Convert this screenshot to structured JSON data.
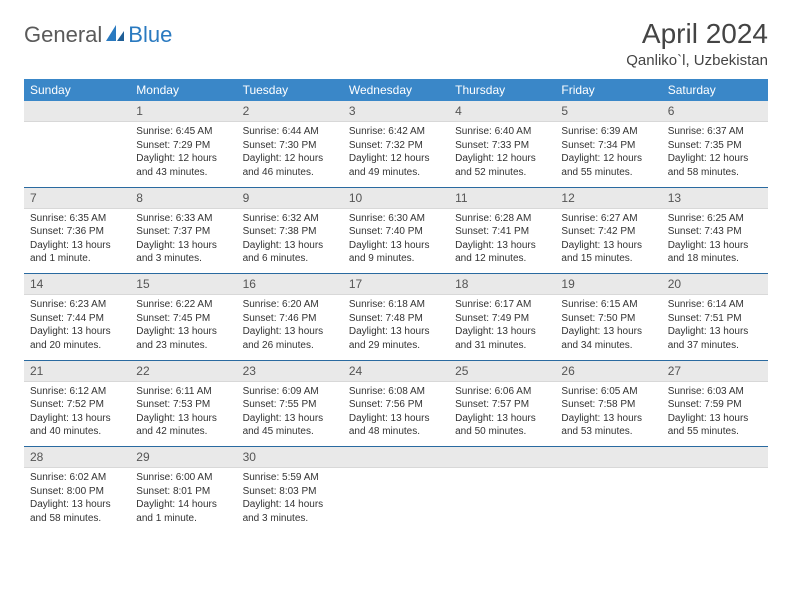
{
  "brand": {
    "part1": "General",
    "part2": "Blue"
  },
  "title": "April 2024",
  "location": "Qanliko`l, Uzbekistan",
  "colors": {
    "header_bg": "#3a87c8",
    "daynum_bg": "#e9e9e9",
    "week_sep": "#2a6aa0",
    "brand_blue": "#2a7ac0",
    "brand_gray": "#5a5a5a"
  },
  "weekdays": [
    "Sunday",
    "Monday",
    "Tuesday",
    "Wednesday",
    "Thursday",
    "Friday",
    "Saturday"
  ],
  "weeks": [
    [
      {
        "n": "",
        "sr": "",
        "ss": "",
        "dl": ""
      },
      {
        "n": "1",
        "sr": "Sunrise: 6:45 AM",
        "ss": "Sunset: 7:29 PM",
        "dl": "Daylight: 12 hours and 43 minutes."
      },
      {
        "n": "2",
        "sr": "Sunrise: 6:44 AM",
        "ss": "Sunset: 7:30 PM",
        "dl": "Daylight: 12 hours and 46 minutes."
      },
      {
        "n": "3",
        "sr": "Sunrise: 6:42 AM",
        "ss": "Sunset: 7:32 PM",
        "dl": "Daylight: 12 hours and 49 minutes."
      },
      {
        "n": "4",
        "sr": "Sunrise: 6:40 AM",
        "ss": "Sunset: 7:33 PM",
        "dl": "Daylight: 12 hours and 52 minutes."
      },
      {
        "n": "5",
        "sr": "Sunrise: 6:39 AM",
        "ss": "Sunset: 7:34 PM",
        "dl": "Daylight: 12 hours and 55 minutes."
      },
      {
        "n": "6",
        "sr": "Sunrise: 6:37 AM",
        "ss": "Sunset: 7:35 PM",
        "dl": "Daylight: 12 hours and 58 minutes."
      }
    ],
    [
      {
        "n": "7",
        "sr": "Sunrise: 6:35 AM",
        "ss": "Sunset: 7:36 PM",
        "dl": "Daylight: 13 hours and 1 minute."
      },
      {
        "n": "8",
        "sr": "Sunrise: 6:33 AM",
        "ss": "Sunset: 7:37 PM",
        "dl": "Daylight: 13 hours and 3 minutes."
      },
      {
        "n": "9",
        "sr": "Sunrise: 6:32 AM",
        "ss": "Sunset: 7:38 PM",
        "dl": "Daylight: 13 hours and 6 minutes."
      },
      {
        "n": "10",
        "sr": "Sunrise: 6:30 AM",
        "ss": "Sunset: 7:40 PM",
        "dl": "Daylight: 13 hours and 9 minutes."
      },
      {
        "n": "11",
        "sr": "Sunrise: 6:28 AM",
        "ss": "Sunset: 7:41 PM",
        "dl": "Daylight: 13 hours and 12 minutes."
      },
      {
        "n": "12",
        "sr": "Sunrise: 6:27 AM",
        "ss": "Sunset: 7:42 PM",
        "dl": "Daylight: 13 hours and 15 minutes."
      },
      {
        "n": "13",
        "sr": "Sunrise: 6:25 AM",
        "ss": "Sunset: 7:43 PM",
        "dl": "Daylight: 13 hours and 18 minutes."
      }
    ],
    [
      {
        "n": "14",
        "sr": "Sunrise: 6:23 AM",
        "ss": "Sunset: 7:44 PM",
        "dl": "Daylight: 13 hours and 20 minutes."
      },
      {
        "n": "15",
        "sr": "Sunrise: 6:22 AM",
        "ss": "Sunset: 7:45 PM",
        "dl": "Daylight: 13 hours and 23 minutes."
      },
      {
        "n": "16",
        "sr": "Sunrise: 6:20 AM",
        "ss": "Sunset: 7:46 PM",
        "dl": "Daylight: 13 hours and 26 minutes."
      },
      {
        "n": "17",
        "sr": "Sunrise: 6:18 AM",
        "ss": "Sunset: 7:48 PM",
        "dl": "Daylight: 13 hours and 29 minutes."
      },
      {
        "n": "18",
        "sr": "Sunrise: 6:17 AM",
        "ss": "Sunset: 7:49 PM",
        "dl": "Daylight: 13 hours and 31 minutes."
      },
      {
        "n": "19",
        "sr": "Sunrise: 6:15 AM",
        "ss": "Sunset: 7:50 PM",
        "dl": "Daylight: 13 hours and 34 minutes."
      },
      {
        "n": "20",
        "sr": "Sunrise: 6:14 AM",
        "ss": "Sunset: 7:51 PM",
        "dl": "Daylight: 13 hours and 37 minutes."
      }
    ],
    [
      {
        "n": "21",
        "sr": "Sunrise: 6:12 AM",
        "ss": "Sunset: 7:52 PM",
        "dl": "Daylight: 13 hours and 40 minutes."
      },
      {
        "n": "22",
        "sr": "Sunrise: 6:11 AM",
        "ss": "Sunset: 7:53 PM",
        "dl": "Daylight: 13 hours and 42 minutes."
      },
      {
        "n": "23",
        "sr": "Sunrise: 6:09 AM",
        "ss": "Sunset: 7:55 PM",
        "dl": "Daylight: 13 hours and 45 minutes."
      },
      {
        "n": "24",
        "sr": "Sunrise: 6:08 AM",
        "ss": "Sunset: 7:56 PM",
        "dl": "Daylight: 13 hours and 48 minutes."
      },
      {
        "n": "25",
        "sr": "Sunrise: 6:06 AM",
        "ss": "Sunset: 7:57 PM",
        "dl": "Daylight: 13 hours and 50 minutes."
      },
      {
        "n": "26",
        "sr": "Sunrise: 6:05 AM",
        "ss": "Sunset: 7:58 PM",
        "dl": "Daylight: 13 hours and 53 minutes."
      },
      {
        "n": "27",
        "sr": "Sunrise: 6:03 AM",
        "ss": "Sunset: 7:59 PM",
        "dl": "Daylight: 13 hours and 55 minutes."
      }
    ],
    [
      {
        "n": "28",
        "sr": "Sunrise: 6:02 AM",
        "ss": "Sunset: 8:00 PM",
        "dl": "Daylight: 13 hours and 58 minutes."
      },
      {
        "n": "29",
        "sr": "Sunrise: 6:00 AM",
        "ss": "Sunset: 8:01 PM",
        "dl": "Daylight: 14 hours and 1 minute."
      },
      {
        "n": "30",
        "sr": "Sunrise: 5:59 AM",
        "ss": "Sunset: 8:03 PM",
        "dl": "Daylight: 14 hours and 3 minutes."
      },
      {
        "n": "",
        "sr": "",
        "ss": "",
        "dl": ""
      },
      {
        "n": "",
        "sr": "",
        "ss": "",
        "dl": ""
      },
      {
        "n": "",
        "sr": "",
        "ss": "",
        "dl": ""
      },
      {
        "n": "",
        "sr": "",
        "ss": "",
        "dl": ""
      }
    ]
  ]
}
